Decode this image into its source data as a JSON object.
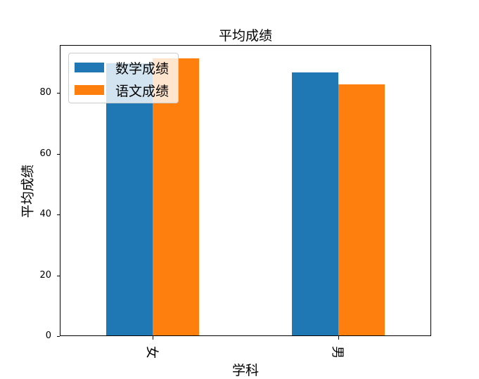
{
  "chart_data": {
    "type": "bar",
    "title": "平均成绩",
    "xlabel": "学科",
    "ylabel": "平均成绩",
    "categories": [
      "女",
      "男"
    ],
    "series": [
      {
        "name": "数学成绩",
        "color": "#1f77b4",
        "values": [
          89.5,
          86.5
        ]
      },
      {
        "name": "语文成绩",
        "color": "#ff7f0e",
        "values": [
          91.1,
          82.5
        ]
      }
    ],
    "ylim": [
      0,
      95.7
    ],
    "yticks": [
      "0",
      "20",
      "40",
      "60",
      "80"
    ],
    "grid": false,
    "legend_position": "upper left"
  }
}
